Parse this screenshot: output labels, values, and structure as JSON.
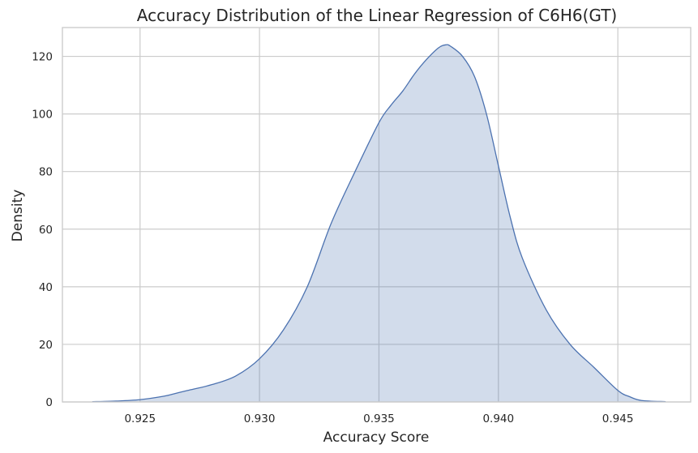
{
  "chart_data": {
    "type": "area",
    "title": "Accuracy Distribution of the Linear Regression of C6H6(GT)",
    "xlabel": "Accuracy Score",
    "ylabel": "Density",
    "xlim": [
      0.92175,
      0.94805
    ],
    "ylim": [
      0,
      130
    ],
    "x_ticks": [
      0.925,
      0.93,
      0.935,
      0.94,
      0.945
    ],
    "x_tick_labels": [
      "0.925",
      "0.930",
      "0.935",
      "0.940",
      "0.945"
    ],
    "y_ticks": [
      0,
      20,
      40,
      60,
      80,
      100,
      120
    ],
    "y_tick_labels": [
      "0",
      "20",
      "40",
      "60",
      "80",
      "100",
      "120"
    ],
    "grid": true,
    "colors": {
      "line": "#4c72b0",
      "fill": "#4c72b0",
      "fill_opacity": 0.25,
      "grid": "#cccccc"
    },
    "series": [
      {
        "x": [
          0.923,
          0.924,
          0.925,
          0.926,
          0.9265,
          0.927,
          0.928,
          0.929,
          0.93,
          0.931,
          0.932,
          0.933,
          0.934,
          0.935,
          0.9355,
          0.936,
          0.9365,
          0.937,
          0.9375,
          0.9378,
          0.938,
          0.9385,
          0.939,
          0.9395,
          0.94,
          0.9405,
          0.941,
          0.942,
          0.943,
          0.944,
          0.945,
          0.9455,
          0.946,
          0.947
        ],
        "y": [
          0.1,
          0.3,
          0.8,
          2.0,
          3.0,
          4.0,
          6.0,
          9.0,
          15.0,
          25.0,
          40.0,
          62.0,
          80.0,
          97.0,
          103.0,
          108.0,
          114.0,
          119.0,
          123.0,
          124.0,
          123.5,
          120.0,
          113.0,
          100.0,
          82.0,
          64.0,
          50.0,
          32.0,
          20.0,
          12.0,
          4.0,
          1.8,
          0.5,
          0.1
        ]
      }
    ]
  }
}
